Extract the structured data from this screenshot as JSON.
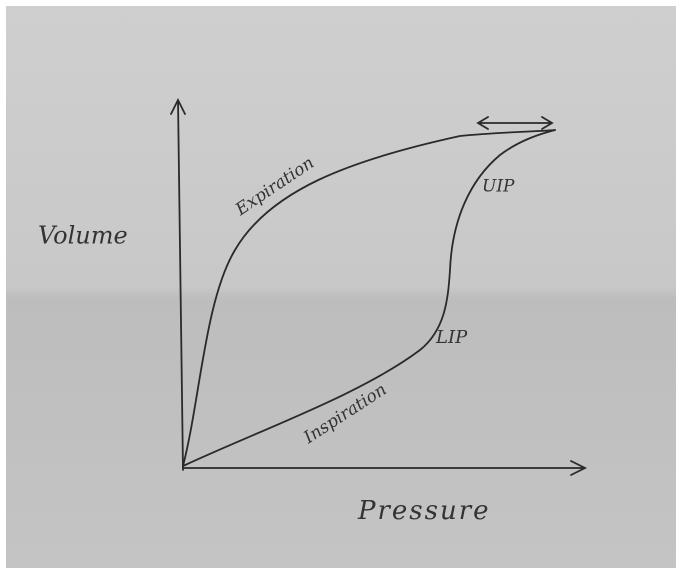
{
  "axes": {
    "y_label": "Volume",
    "x_label": "Pressure"
  },
  "curves": {
    "expiration": "Expiration",
    "inspiration": "Inspiration"
  },
  "points": {
    "upper": "UIP",
    "lower": "LIP"
  }
}
